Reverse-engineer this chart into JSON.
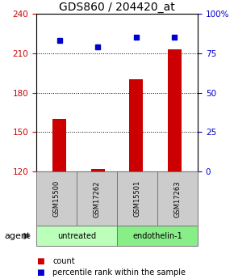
{
  "title": "GDS860 / 204420_at",
  "samples": [
    "GSM15500",
    "GSM17262",
    "GSM15501",
    "GSM17263"
  ],
  "bar_values": [
    160,
    122,
    190,
    213
  ],
  "percentile_values": [
    83,
    79,
    85,
    85
  ],
  "ylim_left": [
    120,
    240
  ],
  "ylim_right": [
    0,
    100
  ],
  "yticks_left": [
    120,
    150,
    180,
    210,
    240
  ],
  "yticks_right": [
    0,
    25,
    50,
    75,
    100
  ],
  "bar_color": "#cc0000",
  "percentile_color": "#0000cc",
  "groups": [
    {
      "label": "untreated",
      "indices": [
        0,
        1
      ],
      "color": "#bbffbb"
    },
    {
      "label": "endothelin-1",
      "indices": [
        2,
        3
      ],
      "color": "#88ee88"
    }
  ],
  "agent_label": "agent",
  "legend_count_label": "count",
  "legend_pct_label": "percentile rank within the sample",
  "grid_yticks": [
    150,
    180,
    210
  ],
  "background_color": "#ffffff",
  "sample_box_color": "#cccccc",
  "title_fontsize": 10,
  "tick_fontsize": 7.5,
  "sample_fontsize": 6,
  "agent_fontsize": 8,
  "legend_fontsize": 7
}
